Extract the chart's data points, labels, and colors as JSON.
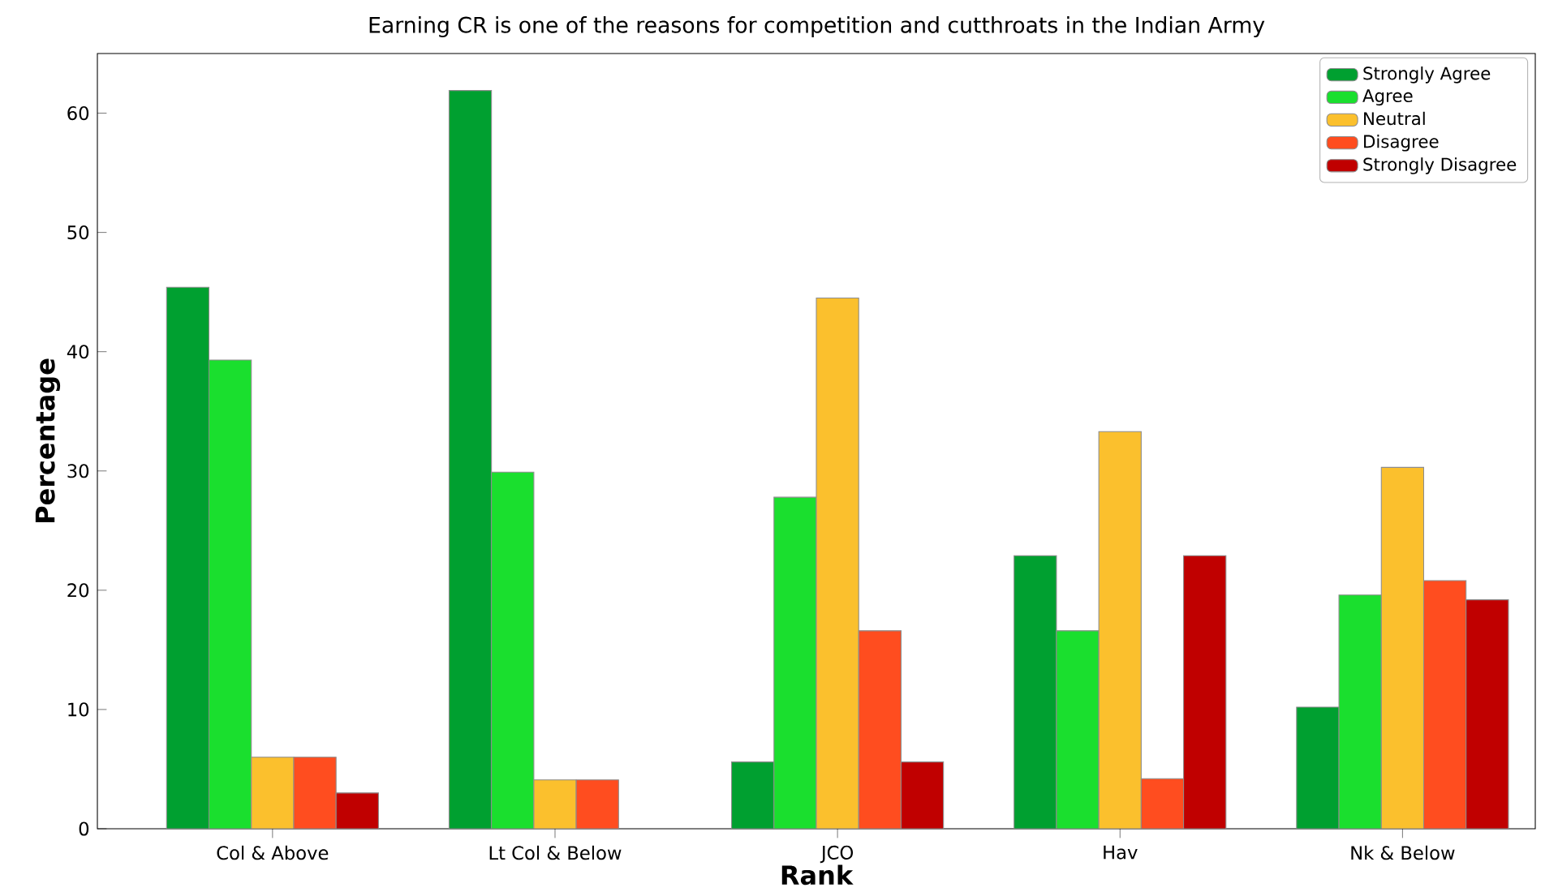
{
  "chart_data": {
    "type": "bar",
    "title": "Earning CR is one of the reasons for competition and cutthroats in the Indian Army",
    "xlabel": "Rank",
    "ylabel": "Percentage",
    "categories": [
      "Col & Above",
      "Lt Col & Below",
      "JCO",
      "Hav",
      "Nk & Below"
    ],
    "series": [
      {
        "name": "Strongly Agree",
        "color": "#00a030",
        "values": [
          45.4,
          61.9,
          5.6,
          22.9,
          10.2
        ]
      },
      {
        "name": "Agree",
        "color": "#1adf2e",
        "values": [
          39.3,
          29.9,
          27.8,
          16.6,
          19.6
        ]
      },
      {
        "name": "Neutral",
        "color": "#fbc02d",
        "values": [
          6.0,
          4.1,
          44.5,
          33.3,
          30.3
        ]
      },
      {
        "name": "Disagree",
        "color": "#ff4d1f",
        "values": [
          6.0,
          4.1,
          16.6,
          4.2,
          20.8
        ]
      },
      {
        "name": "Strongly Disagree",
        "color": "#c00000",
        "values": [
          3.0,
          null,
          5.6,
          22.9,
          19.2
        ]
      }
    ],
    "ylim": [
      0,
      65
    ],
    "yticks": [
      0,
      10,
      20,
      30,
      40,
      50,
      60
    ],
    "legend": "top right"
  }
}
